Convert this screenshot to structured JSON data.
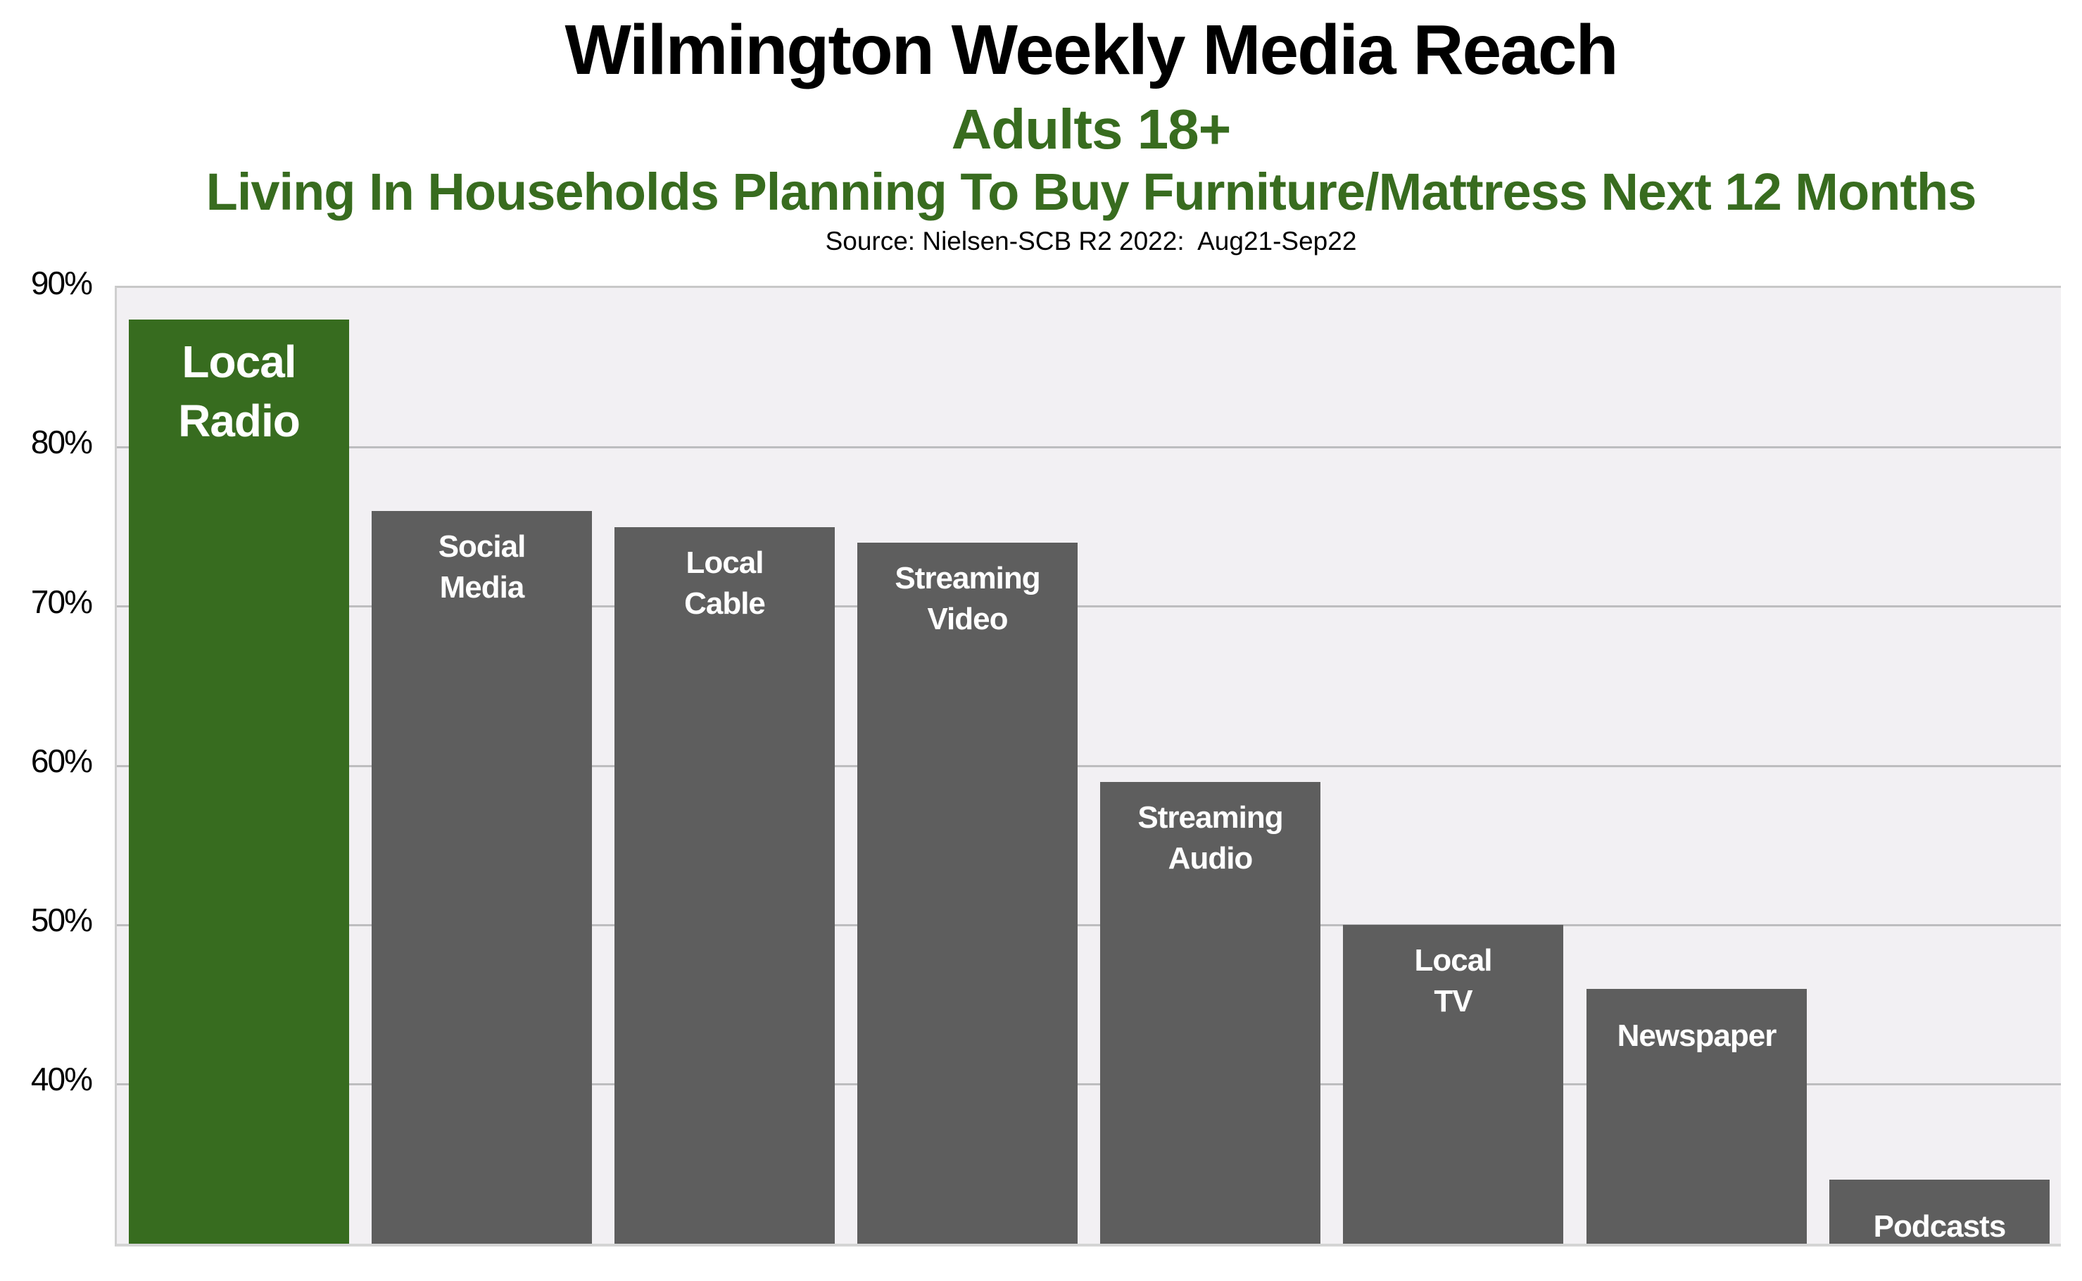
{
  "title": "Wilmington Weekly Media Reach",
  "subtitle_1": "Adults 18+",
  "subtitle_2": "Living In Households Planning To Buy Furniture/Mattress Next 12 Months",
  "source": "Source: Nielsen-SCB R2 2022:  Aug21-Sep22",
  "colors": {
    "highlight": "#376c1f",
    "bar": "#5e5e5e",
    "plot_background": "#f2f0f3",
    "subtitle": "#386c1f"
  },
  "y_axis": {
    "ticks": [
      "90%",
      "80%",
      "70%",
      "60%",
      "50%",
      "40%"
    ]
  },
  "bars": [
    {
      "label": "Local\nRadio",
      "value": 88,
      "highlight": true
    },
    {
      "label": "Social\nMedia",
      "value": 76,
      "highlight": false
    },
    {
      "label": "Local\nCable",
      "value": 75,
      "highlight": false
    },
    {
      "label": "Streaming\nVideo",
      "value": 74,
      "highlight": false
    },
    {
      "label": "Streaming\nAudio",
      "value": 59,
      "highlight": false
    },
    {
      "label": "Local\nTV",
      "value": 50,
      "highlight": false
    },
    {
      "label": "Newspaper",
      "value": 46,
      "highlight": false
    },
    {
      "label": "Podcasts",
      "value": 34,
      "highlight": false
    }
  ],
  "chart_data": {
    "type": "bar",
    "title": "Wilmington Weekly Media Reach",
    "subtitle": "Adults 18+ Living In Households Planning To Buy Furniture/Mattress Next 12 Months",
    "source": "Source: Nielsen-SCB R2 2022:  Aug21-Sep22",
    "categories": [
      "Local Radio",
      "Social Media",
      "Local Cable",
      "Streaming Video",
      "Streaming Audio",
      "Local TV",
      "Newspaper",
      "Podcasts"
    ],
    "values": [
      88,
      76,
      75,
      74,
      59,
      50,
      46,
      34
    ],
    "xlabel": "",
    "ylabel": "",
    "ylim": [
      30,
      90
    ],
    "yticks": [
      "40%",
      "50%",
      "60%",
      "70%",
      "80%",
      "90%"
    ],
    "grid": true,
    "legend": "none",
    "highlighted_category": "Local Radio",
    "labels_inside_bars": true
  }
}
